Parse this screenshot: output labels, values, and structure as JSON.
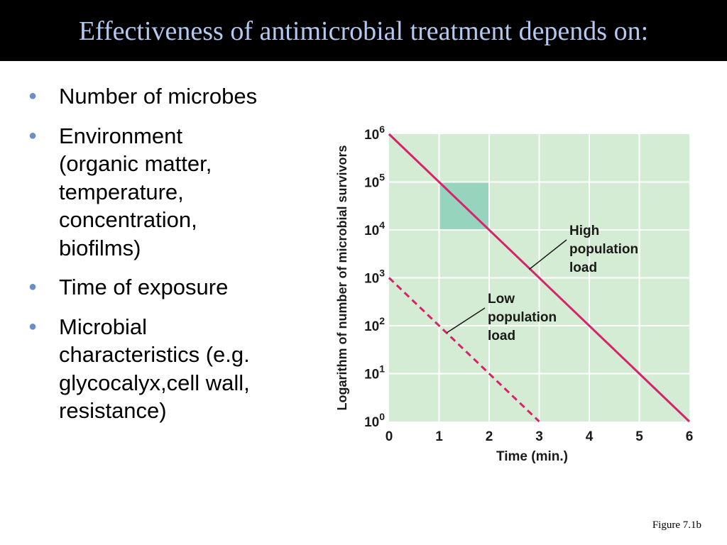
{
  "title": {
    "text": "Effectiveness of antimicrobial treatment depends on:"
  },
  "bullets": [
    {
      "lines": [
        "Number of microbes"
      ]
    },
    {
      "lines": [
        "Environment",
        "(organic matter,",
        "temperature,",
        "concentration,",
        "biofilms)"
      ]
    },
    {
      "lines": [
        "Time of exposure"
      ]
    },
    {
      "lines": [
        "Microbial",
        "characteristics (e.g.",
        "glycocalyx,cell wall,",
        "resistance)"
      ]
    }
  ],
  "figure_caption": "Figure 7.1b",
  "colors": {
    "title_text": "#b3c9ef",
    "bullet": "#6a8fc6",
    "plot_background": "#d3ecd3",
    "highlight_box": "#96d4bd",
    "grid": "#ffffff",
    "series_line": "#d8226b",
    "annotation_line": "#1a1a1a"
  },
  "chart_data": {
    "type": "line",
    "xlabel": "Time (min.)",
    "ylabel": "Logarithm of number of microbial survivors",
    "x_ticks": [
      "0",
      "1",
      "2",
      "3",
      "4",
      "5",
      "6"
    ],
    "y_ticks": [
      {
        "base": "10",
        "exp": "0"
      },
      {
        "base": "10",
        "exp": "1"
      },
      {
        "base": "10",
        "exp": "2"
      },
      {
        "base": "10",
        "exp": "3"
      },
      {
        "base": "10",
        "exp": "4"
      },
      {
        "base": "10",
        "exp": "5"
      },
      {
        "base": "10",
        "exp": "6"
      }
    ],
    "xlim": [
      0,
      6
    ],
    "ylim_log10": [
      0,
      6
    ],
    "y_scale": "log",
    "grid": true,
    "series": [
      {
        "name": "High population load",
        "style": "solid",
        "x": [
          0,
          6
        ],
        "y": [
          1000000,
          1
        ]
      },
      {
        "name": "Low population load",
        "style": "dashed",
        "x": [
          0,
          3
        ],
        "y": [
          1000,
          1
        ]
      }
    ],
    "highlight_region": {
      "x": [
        1,
        2
      ],
      "y": [
        10000,
        100000
      ]
    },
    "annotations": [
      {
        "lines": [
          "High",
          "population",
          "load"
        ],
        "series": "High population load",
        "point": {
          "x": 2.8,
          "y": 1500
        }
      },
      {
        "lines": [
          "Low",
          "population",
          "load"
        ],
        "series": "Low population load",
        "point": {
          "x": 1.15,
          "y": 71
        }
      }
    ]
  }
}
